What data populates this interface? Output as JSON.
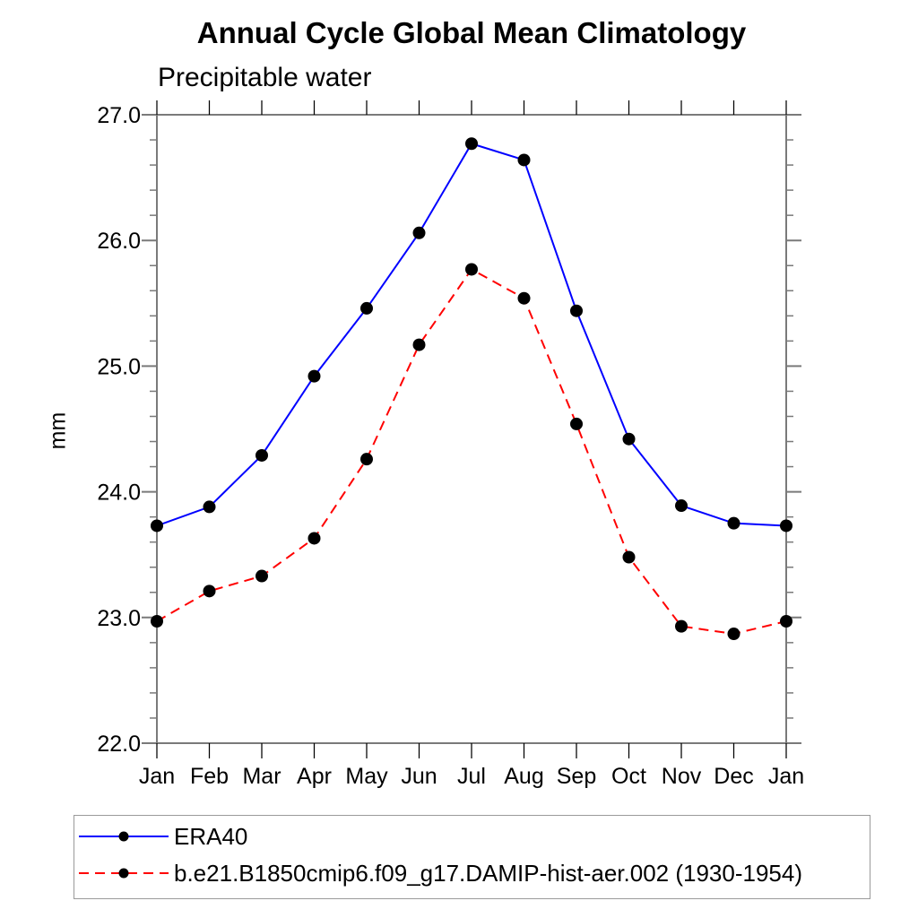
{
  "title": "Annual Cycle Global Mean Climatology",
  "subtitle": "Precipitable water",
  "ylabel": "mm",
  "axis_color": "#7a7a7a",
  "tick_color": "#000000",
  "chart_data": {
    "type": "line",
    "x_categories": [
      "Jan",
      "Feb",
      "Mar",
      "Apr",
      "May",
      "Jun",
      "Jul",
      "Aug",
      "Sep",
      "Oct",
      "Nov",
      "Dec",
      "Jan"
    ],
    "ylim": [
      22.0,
      27.0
    ],
    "ytick_major": [
      22.0,
      23.0,
      24.0,
      25.0,
      26.0,
      27.0
    ],
    "ytick_labels": [
      "22.0",
      "23.0",
      "24.0",
      "25.0",
      "26.0",
      "27.0"
    ],
    "ytick_minor_step": 0.2,
    "grid": false,
    "legend_position": "bottom-left-box",
    "series": [
      {
        "name": "ERA40",
        "color": "#0000ff",
        "line_style": "solid",
        "marker": "filled-circle",
        "marker_color": "#000000",
        "values": [
          23.73,
          23.88,
          24.29,
          24.92,
          25.46,
          26.06,
          26.77,
          26.64,
          25.44,
          24.42,
          23.89,
          23.75,
          23.73
        ]
      },
      {
        "name": "b.e21.B1850cmip6.f09_g17.DAMIP-hist-aer.002 (1930-1954)",
        "color": "#ff0000",
        "line_style": "dashed",
        "marker": "filled-circle",
        "marker_color": "#000000",
        "values": [
          22.97,
          23.21,
          23.33,
          23.63,
          24.26,
          25.17,
          25.77,
          25.54,
          24.54,
          23.48,
          22.93,
          22.87,
          22.97
        ]
      }
    ]
  }
}
